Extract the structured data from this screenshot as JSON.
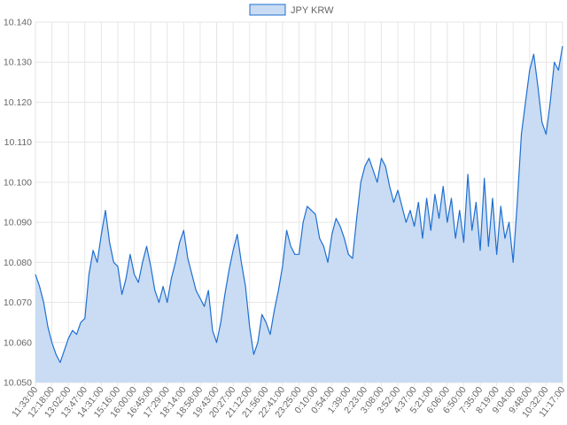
{
  "chart_data": {
    "type": "area",
    "legend": {
      "position": "top-center",
      "label": "JPY KRW"
    },
    "colors": {
      "line": "#1f6fd1",
      "fill": "#c9dcf3",
      "grid": "#e6e6e6",
      "text": "#666666"
    },
    "grid": true,
    "ylim": [
      10.05,
      10.14
    ],
    "y_ticks": [
      "10.050",
      "10.060",
      "10.070",
      "10.080",
      "10.090",
      "10.100",
      "10.110",
      "10.120",
      "10.130",
      "10.140"
    ],
    "x_ticks": [
      "11:33:00",
      "12:18:00",
      "13:02:00",
      "13:47:00",
      "14:31:00",
      "15:16:00",
      "16:00:00",
      "16:45:00",
      "17:29:00",
      "18:14:00",
      "18:58:00",
      "19:43:00",
      "20:27:00",
      "21:12:00",
      "21:56:00",
      "22:41:00",
      "23:25:00",
      "0:10:00",
      "0:54:00",
      "1:39:00",
      "2:23:00",
      "3:08:00",
      "3:52:00",
      "4:37:00",
      "5:21:00",
      "6:06:00",
      "6:50:00",
      "7:35:00",
      "8:19:00",
      "9:04:00",
      "9:48:00",
      "10:32:00",
      "11:17:00"
    ],
    "series": [
      {
        "name": "JPY KRW",
        "values": [
          10.077,
          10.074,
          10.07,
          10.064,
          10.06,
          10.057,
          10.055,
          10.058,
          10.061,
          10.063,
          10.062,
          10.065,
          10.066,
          10.077,
          10.083,
          10.08,
          10.087,
          10.093,
          10.085,
          10.08,
          10.079,
          10.072,
          10.076,
          10.082,
          10.077,
          10.075,
          10.08,
          10.084,
          10.079,
          10.073,
          10.07,
          10.074,
          10.07,
          10.076,
          10.08,
          10.085,
          10.088,
          10.081,
          10.077,
          10.073,
          10.071,
          10.069,
          10.073,
          10.063,
          10.06,
          10.065,
          10.072,
          10.078,
          10.083,
          10.087,
          10.08,
          10.074,
          10.064,
          10.057,
          10.06,
          10.067,
          10.065,
          10.062,
          10.068,
          10.073,
          10.079,
          10.088,
          10.084,
          10.082,
          10.082,
          10.09,
          10.094,
          10.093,
          10.092,
          10.086,
          10.084,
          10.08,
          10.087,
          10.091,
          10.089,
          10.086,
          10.082,
          10.081,
          10.091,
          10.1,
          10.104,
          10.106,
          10.103,
          10.1,
          10.106,
          10.104,
          10.099,
          10.095,
          10.098,
          10.094,
          10.09,
          10.093,
          10.089,
          10.095,
          10.086,
          10.096,
          10.088,
          10.097,
          10.091,
          10.099,
          10.09,
          10.096,
          10.086,
          10.093,
          10.085,
          10.102,
          10.088,
          10.095,
          10.083,
          10.101,
          10.084,
          10.096,
          10.082,
          10.094,
          10.086,
          10.09,
          10.08,
          10.095,
          10.112,
          10.12,
          10.128,
          10.132,
          10.124,
          10.115,
          10.112,
          10.12,
          10.13,
          10.128,
          10.134
        ]
      }
    ]
  }
}
